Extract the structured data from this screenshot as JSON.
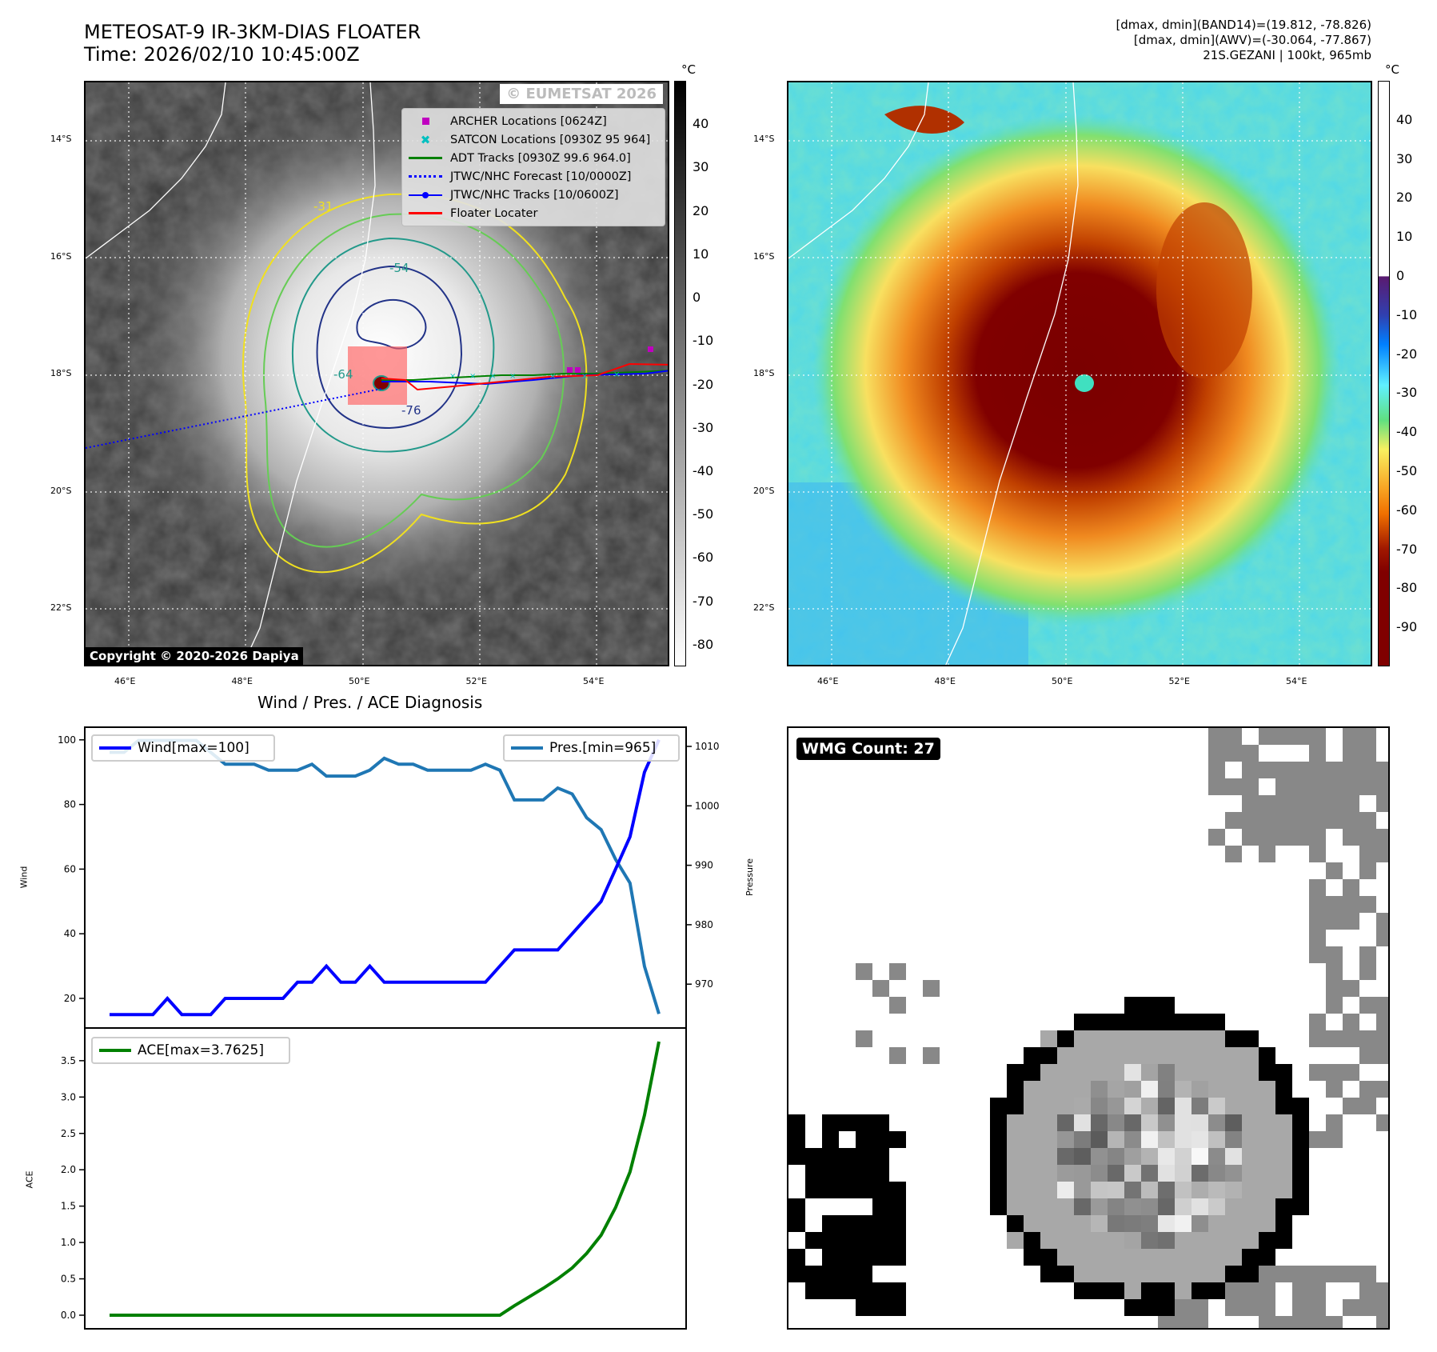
{
  "header": {
    "title": "METEOSAT-9 IR-3KM-DIAS FLOATER",
    "time": "Time: 2026/02/10 10:45:00Z",
    "info_line1": "[dmax, dmin](BAND14)=(19.812, -78.826)",
    "info_line2": "[dmax, dmin](AWV)=(-30.064, -77.867)",
    "info_line3": "21S.GEZANI | 100kt, 965mb"
  },
  "maps": {
    "lat_ticks": [
      "14°S",
      "16°S",
      "18°S",
      "20°S",
      "22°S"
    ],
    "lon_ticks": [
      "46°E",
      "48°E",
      "50°E",
      "52°E",
      "54°E"
    ],
    "ir": {
      "watermark": "© EUMETSAT 2026",
      "copyright": "Copyright © 2020-2026 Dapiya",
      "contour_labels": [
        "-31",
        "-54",
        "-64",
        "-76"
      ],
      "legend": [
        {
          "label": "ARCHER Locations [0624Z]",
          "color": "#c000c0",
          "marker": "square"
        },
        {
          "label": "SATCON Locations [0930Z 95 964]",
          "color": "#00c0c0",
          "marker": "x"
        },
        {
          "label": "ADT Tracks [0930Z 99.6 964.0]",
          "color": "#008000",
          "marker": "line"
        },
        {
          "label": "JTWC/NHC Forecast [10/0000Z]",
          "color": "#0000ff",
          "marker": "dotted"
        },
        {
          "label": "JTWC/NHC Tracks [10/0600Z]",
          "color": "#0000ff",
          "marker": "line-dot"
        },
        {
          "label": "Floater Locater",
          "color": "#ff0000",
          "marker": "line"
        }
      ],
      "colorbar": {
        "unit": "°C",
        "ticks": [
          40,
          30,
          20,
          10,
          0,
          -10,
          -20,
          -30,
          -40,
          -50,
          -60,
          -70,
          -80
        ],
        "range": [
          -85,
          50
        ]
      }
    },
    "awv": {
      "colorbar": {
        "unit": "°C",
        "ticks": [
          40,
          30,
          20,
          10,
          0,
          -10,
          -20,
          -30,
          -40,
          -50,
          -60,
          -70,
          -80,
          -90
        ],
        "range": [
          -100,
          50
        ]
      }
    }
  },
  "wmg": {
    "label": "WMG Count: 27"
  },
  "chart_data": [
    {
      "type": "line",
      "title": "Wind / Pres. / ACE Diagnosis",
      "ylabel": "Wind",
      "y2label": "Pressure",
      "ylim": [
        15,
        100
      ],
      "y2lim": [
        965,
        1010
      ],
      "yticks": [
        20,
        40,
        60,
        80,
        100
      ],
      "y2ticks": [
        970,
        980,
        990,
        1000,
        1010
      ],
      "series": [
        {
          "name": "Wind[max=100]",
          "axis": "left",
          "color": "#0000ff",
          "values": [
            15,
            15,
            15,
            15,
            20,
            15,
            15,
            15,
            20,
            20,
            20,
            20,
            20,
            25,
            25,
            30,
            25,
            25,
            30,
            25,
            25,
            25,
            25,
            25,
            25,
            25,
            25,
            30,
            35,
            35,
            35,
            35,
            40,
            45,
            50,
            60,
            70,
            90,
            100
          ]
        },
        {
          "name": "Pres.[min=965]",
          "axis": "right",
          "color": "#1f77b4",
          "values": [
            1009,
            1009,
            1011,
            1011,
            1011,
            1011,
            1011,
            1009,
            1007,
            1007,
            1007,
            1006,
            1006,
            1006,
            1007,
            1005,
            1005,
            1005,
            1006,
            1008,
            1007,
            1007,
            1006,
            1006,
            1006,
            1006,
            1007,
            1006,
            1001,
            1001,
            1001,
            1003,
            1002,
            998,
            996,
            991,
            987,
            973,
            965
          ]
        }
      ]
    },
    {
      "type": "line",
      "ylabel": "ACE",
      "ylim": [
        0,
        3.8
      ],
      "yticks": [
        "0.0",
        "0.5",
        "1.0",
        "1.5",
        "2.0",
        "2.5",
        "3.0",
        "3.5"
      ],
      "series": [
        {
          "name": "ACE[max=3.7625]",
          "color": "#008000",
          "values": [
            0,
            0,
            0,
            0,
            0,
            0,
            0,
            0,
            0,
            0,
            0,
            0,
            0,
            0,
            0,
            0,
            0,
            0,
            0,
            0,
            0,
            0,
            0,
            0,
            0,
            0,
            0,
            0,
            0.13,
            0.25,
            0.37,
            0.5,
            0.65,
            0.85,
            1.1,
            1.48,
            1.97,
            2.75,
            3.7625
          ]
        }
      ]
    }
  ]
}
